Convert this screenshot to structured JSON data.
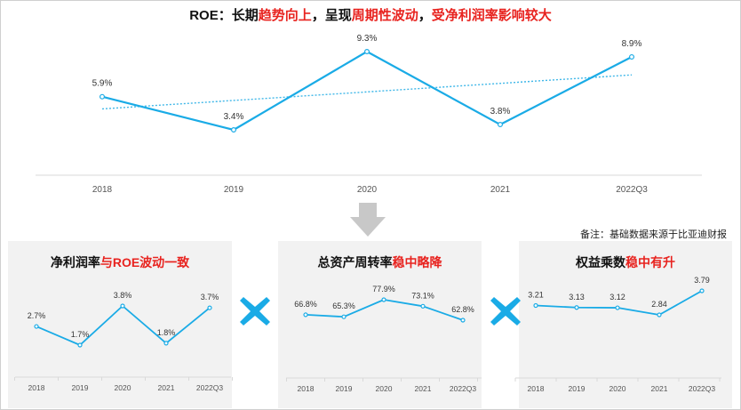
{
  "main_title": {
    "part1": "ROE：长期",
    "part2": "趋势向上",
    "part3": "，呈现",
    "part4": "周期性波动",
    "part5": "，",
    "part6": "受净利润率影响较大"
  },
  "source_note": "备注：基础数据来源于比亚迪财报",
  "colors": {
    "line": "#1aabe6",
    "trend": "#3fb7e8",
    "highlight": "#e8231f",
    "panel_bg": "#f2f2f2",
    "x_icon": "#1aabe6",
    "arrow": "#c8c8c8"
  },
  "icons": {
    "arrow": "down-arrow-icon",
    "multiply": "multiply-icon"
  },
  "chart_data": [
    {
      "id": "roe",
      "type": "line",
      "title": "ROE：长期趋势向上，呈现周期性波动，受净利润率影响较大",
      "categories": [
        "2018",
        "2019",
        "2020",
        "2021",
        "2022Q3"
      ],
      "values": [
        5.9,
        3.4,
        9.3,
        3.8,
        8.9
      ],
      "labels": [
        "5.9%",
        "3.4%",
        "9.3%",
        "3.8%",
        "8.9%"
      ],
      "trendline": true,
      "grid": false
    },
    {
      "id": "net_margin",
      "type": "line",
      "title_plain": "净利润率",
      "title_highlight": "与ROE波动一致",
      "categories": [
        "2018",
        "2019",
        "2020",
        "2021",
        "2022Q3"
      ],
      "values": [
        2.7,
        1.7,
        3.8,
        1.8,
        3.7
      ],
      "labels": [
        "2.7%",
        "1.7%",
        "3.8%",
        "1.8%",
        "3.7%"
      ]
    },
    {
      "id": "asset_turnover",
      "type": "line",
      "title_plain": "总资产周转率",
      "title_highlight": "稳中略降",
      "categories": [
        "2018",
        "2019",
        "2020",
        "2021",
        "2022Q3"
      ],
      "values": [
        66.8,
        65.3,
        77.9,
        73.1,
        62.8
      ],
      "labels": [
        "66.8%",
        "65.3%",
        "77.9%",
        "73.1%",
        "62.8%"
      ]
    },
    {
      "id": "equity_multiplier",
      "type": "line",
      "title_plain": "权益乘数",
      "title_highlight": "稳中有升",
      "categories": [
        "2018",
        "2019",
        "2020",
        "2021",
        "2022Q3"
      ],
      "values": [
        3.21,
        3.13,
        3.12,
        2.84,
        3.79
      ],
      "labels": [
        "3.21",
        "3.13",
        "3.12",
        "2.84",
        "3.79"
      ]
    }
  ]
}
